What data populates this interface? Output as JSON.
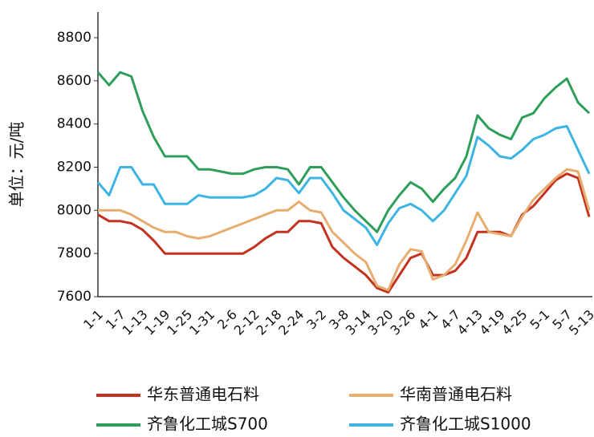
{
  "chart_data": {
    "type": "line",
    "y_label": "单位：元/吨",
    "categories": [
      "1-1",
      null,
      "1-7",
      null,
      "1-13",
      null,
      "1-19",
      null,
      "1-25",
      null,
      "1-31",
      null,
      "2-6",
      null,
      "2-12",
      null,
      "2-18",
      null,
      "2-24",
      null,
      "3-2",
      null,
      "3-8",
      null,
      "3-14",
      null,
      "3-20",
      null,
      "3-26",
      null,
      "4-1",
      null,
      "4-7",
      null,
      "4-13",
      null,
      "4-19",
      null,
      "4-25",
      null,
      "5-1",
      null,
      "5-7",
      null,
      "5-13"
    ],
    "series": [
      {
        "name": "华东普通电石料",
        "color": "#c4321f",
        "values": [
          7980,
          7950,
          7950,
          7940,
          7910,
          7860,
          7800,
          7800,
          7800,
          7800,
          7800,
          7800,
          7800,
          7800,
          7830,
          7870,
          7900,
          7900,
          7950,
          7950,
          7940,
          7830,
          7780,
          7740,
          7700,
          7640,
          7620,
          7700,
          7780,
          7800,
          7700,
          7700,
          7720,
          7780,
          7900,
          7900,
          7900,
          7880,
          7980,
          8020,
          8080,
          8140,
          8170,
          8150,
          7970
        ]
      },
      {
        "name": "华南普通电石料",
        "color": "#e6ad6e",
        "values": [
          8000,
          8000,
          8000,
          7980,
          7950,
          7920,
          7900,
          7900,
          7880,
          7870,
          7880,
          7900,
          7920,
          7940,
          7960,
          7980,
          8000,
          8000,
          8040,
          8000,
          7990,
          7900,
          7850,
          7800,
          7760,
          7650,
          7630,
          7750,
          7820,
          7810,
          7680,
          7700,
          7750,
          7860,
          7990,
          7900,
          7890,
          7880,
          7970,
          8050,
          8100,
          8150,
          8190,
          8180,
          8000
        ]
      },
      {
        "name": "齐鲁化工城S700",
        "color": "#2f9e5a",
        "values": [
          8640,
          8580,
          8640,
          8620,
          8460,
          8340,
          8250,
          8250,
          8250,
          8190,
          8190,
          8180,
          8170,
          8170,
          8190,
          8200,
          8200,
          8190,
          8120,
          8200,
          8200,
          8130,
          8060,
          8000,
          7950,
          7900,
          8000,
          8070,
          8130,
          8100,
          8040,
          8100,
          8150,
          8250,
          8440,
          8380,
          8350,
          8330,
          8430,
          8450,
          8520,
          8570,
          8610,
          8500,
          8450
        ]
      },
      {
        "name": "齐鲁化工城S1000",
        "color": "#3db4e2",
        "values": [
          8130,
          8070,
          8200,
          8200,
          8120,
          8120,
          8030,
          8030,
          8030,
          8070,
          8060,
          8060,
          8060,
          8060,
          8070,
          8100,
          8150,
          8140,
          8080,
          8150,
          8150,
          8080,
          8000,
          7960,
          7920,
          7840,
          7940,
          8010,
          8030,
          8000,
          7950,
          8000,
          8080,
          8160,
          8340,
          8300,
          8250,
          8240,
          8280,
          8330,
          8350,
          8380,
          8390,
          8280,
          8170
        ]
      }
    ],
    "ylim": [
      7600,
      8800
    ],
    "yticks": [
      7600,
      7800,
      8000,
      8200,
      8400,
      8600,
      8800
    ]
  }
}
